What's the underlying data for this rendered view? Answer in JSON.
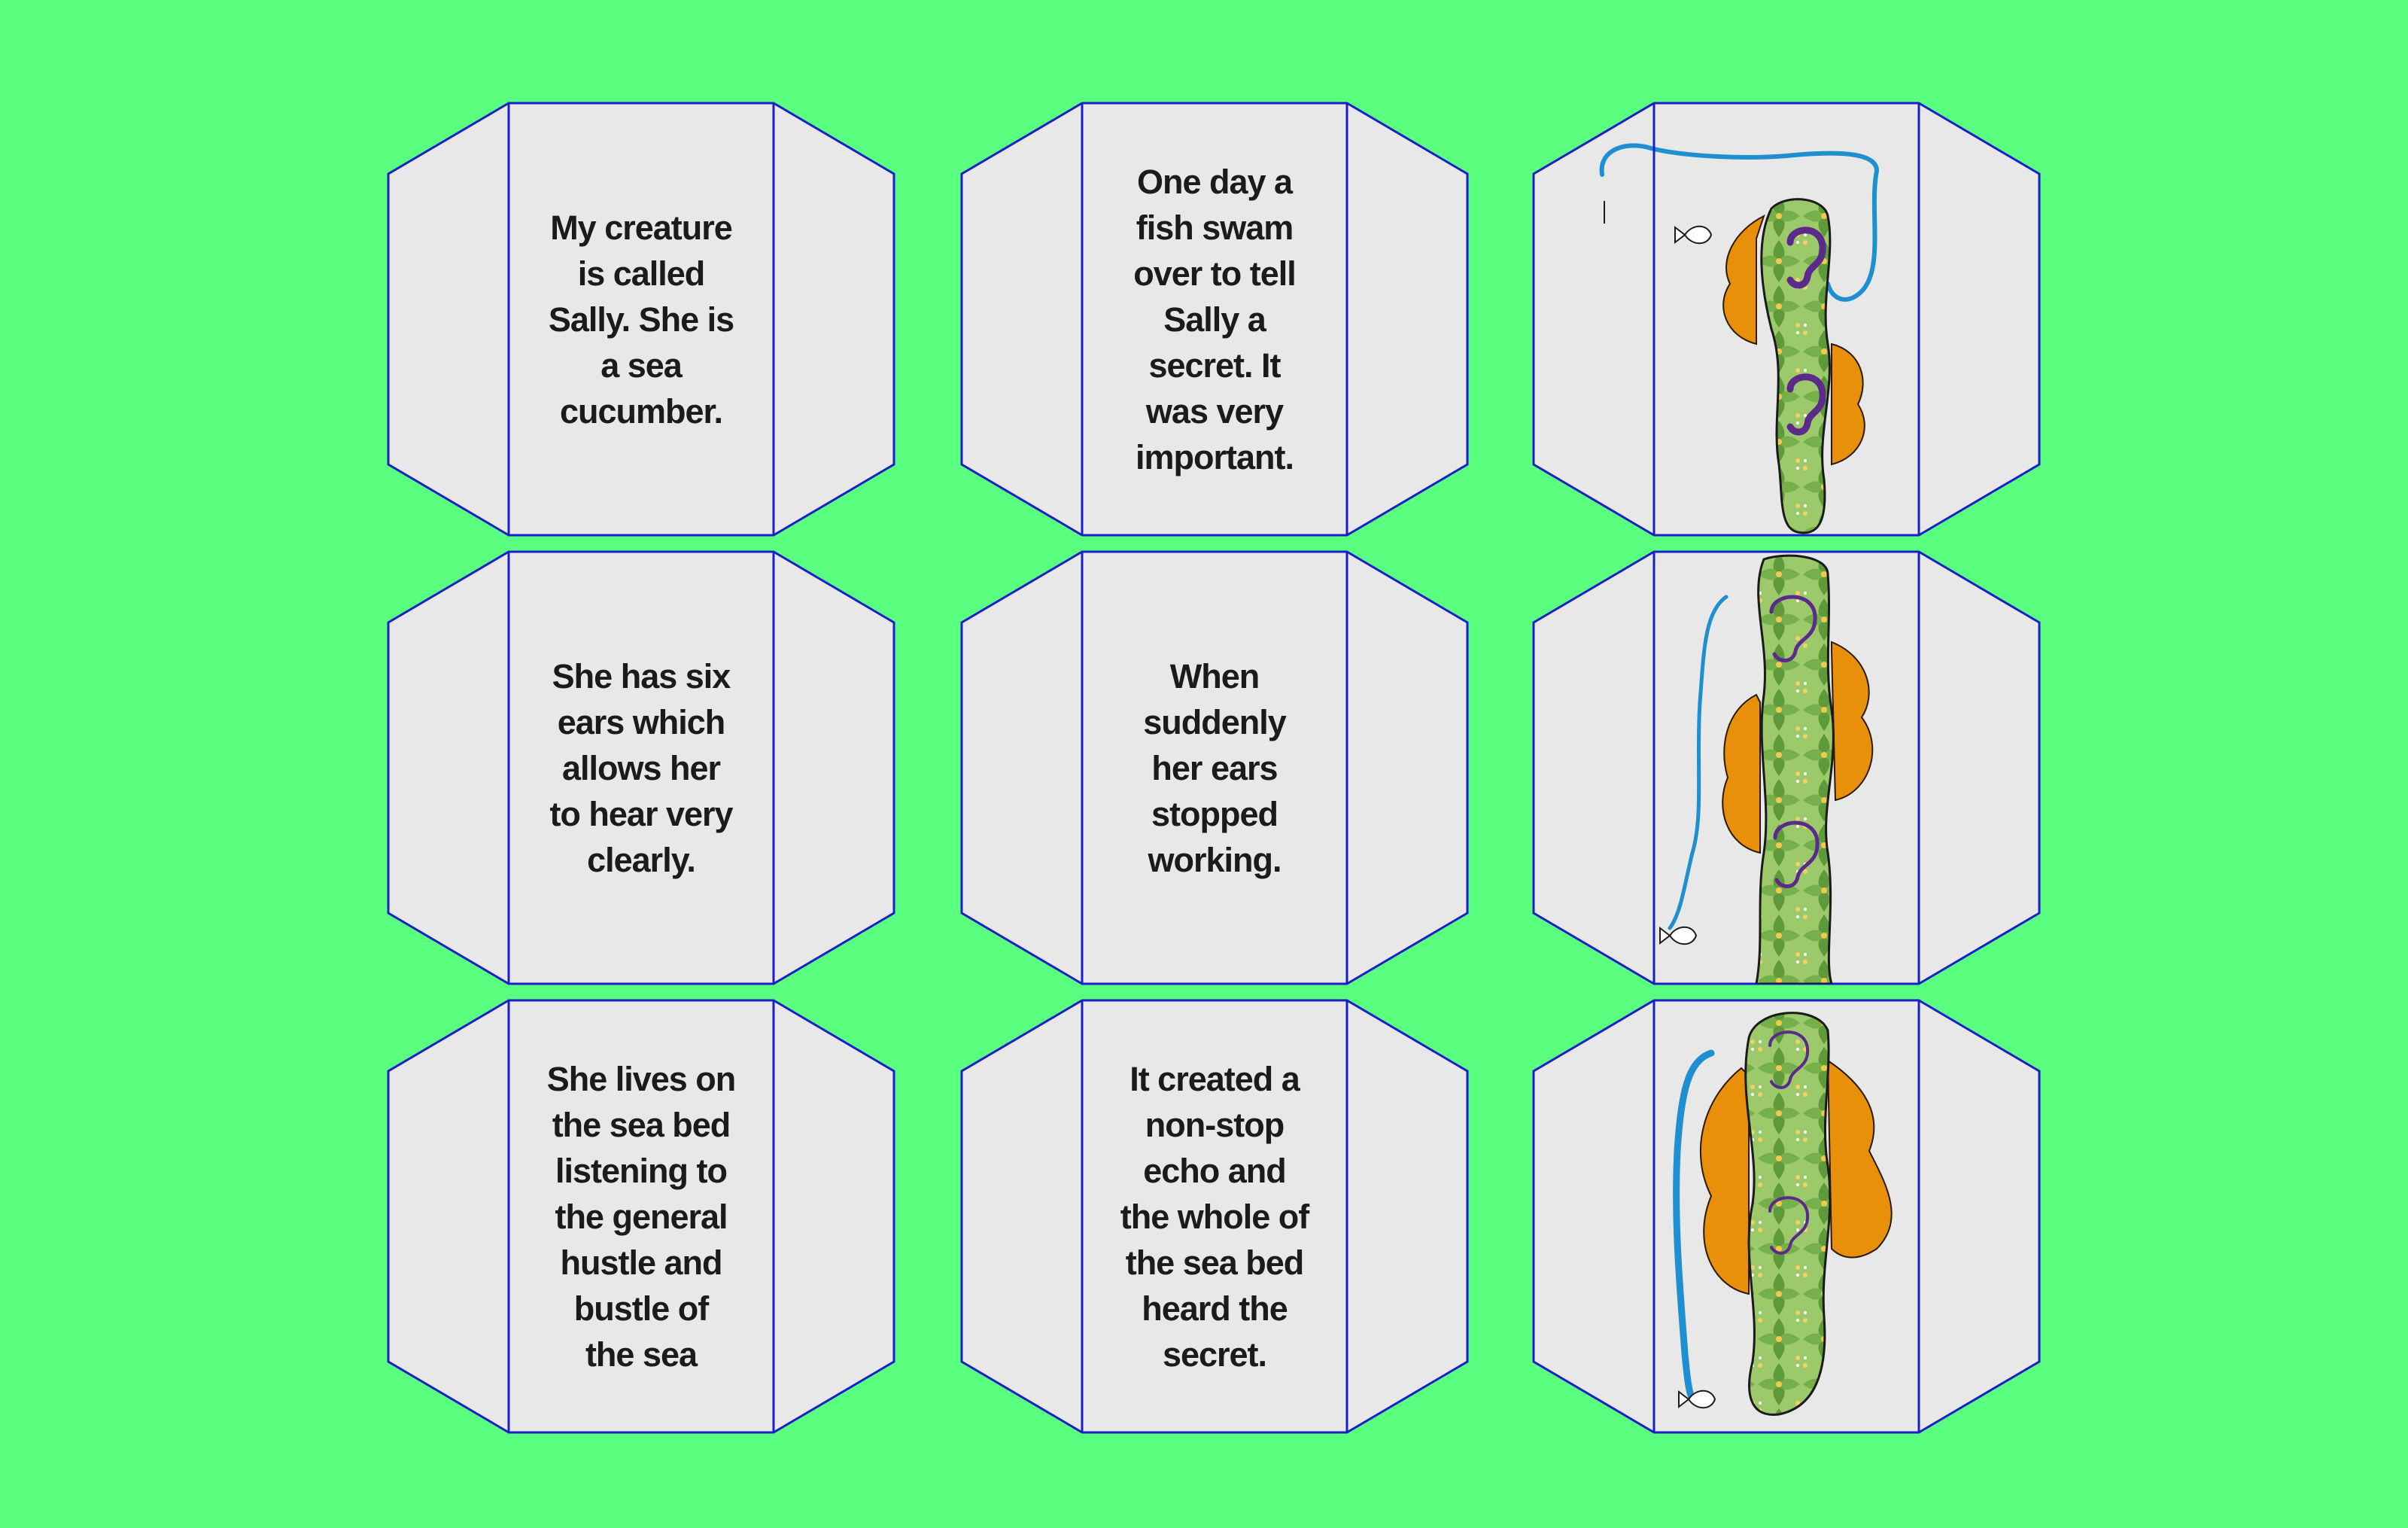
{
  "colors": {
    "background": "#5bff7f",
    "panel_fill": "#e8e8e8",
    "panel_outline": "#1a20c8",
    "text": "#1b1b1b",
    "creature_green": "#8fbf5a",
    "hair_orange": "#e8900a",
    "line_blue": "#1e8fd0",
    "ear_purple": "#5b2a8a"
  },
  "cards": [
    {
      "id": "card-1",
      "text": "My creature\nis called\nSally. She is\na sea\ncucumber."
    },
    {
      "id": "card-2",
      "text": "One day a\nfish swam\nover to tell\nSally a\nsecret. It\nwas very\nimportant."
    },
    {
      "id": "card-3",
      "illustration": "sea-cucumber-with-ears-1"
    },
    {
      "id": "card-4",
      "text": "She has six\nears which\nallows her\nto hear very\nclearly."
    },
    {
      "id": "card-5",
      "text": "When\nsuddenly\nher ears\nstopped\nworking."
    },
    {
      "id": "card-6",
      "illustration": "sea-cucumber-with-ears-2"
    },
    {
      "id": "card-7",
      "text": "She lives on\nthe sea bed\nlistening to\nthe general\nhustle and\nbustle  of\nthe sea"
    },
    {
      "id": "card-8",
      "text": "It created a\nnon-stop\necho and\nthe whole of\nthe sea bed\nheard the\nsecret."
    },
    {
      "id": "card-9",
      "illustration": "sea-cucumber-with-ears-3"
    }
  ]
}
